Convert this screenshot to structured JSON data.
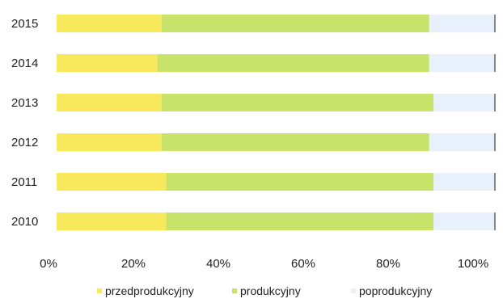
{
  "chart_data": {
    "type": "bar",
    "orientation": "horizontal",
    "stacked": true,
    "normalized": true,
    "categories": [
      "2015",
      "2014",
      "2013",
      "2012",
      "2011",
      "2010"
    ],
    "series": [
      {
        "name": "przedprodukcyjny",
        "color": "#f7e85c",
        "values": [
          0.24,
          0.23,
          0.24,
          0.24,
          0.25,
          0.25
        ]
      },
      {
        "name": "produkcyjny",
        "color": "#c9e36a",
        "values": [
          0.61,
          0.62,
          0.62,
          0.61,
          0.61,
          0.61
        ]
      },
      {
        "name": "poprodukcyjny",
        "color": "#e8f0fb",
        "values": [
          0.15,
          0.15,
          0.14,
          0.15,
          0.14,
          0.14
        ]
      }
    ],
    "xticks": [
      "0%",
      "20%",
      "40%",
      "60%",
      "80%",
      "100%"
    ],
    "xlim": [
      0,
      1
    ],
    "grid": false,
    "legend_position": "bottom"
  }
}
